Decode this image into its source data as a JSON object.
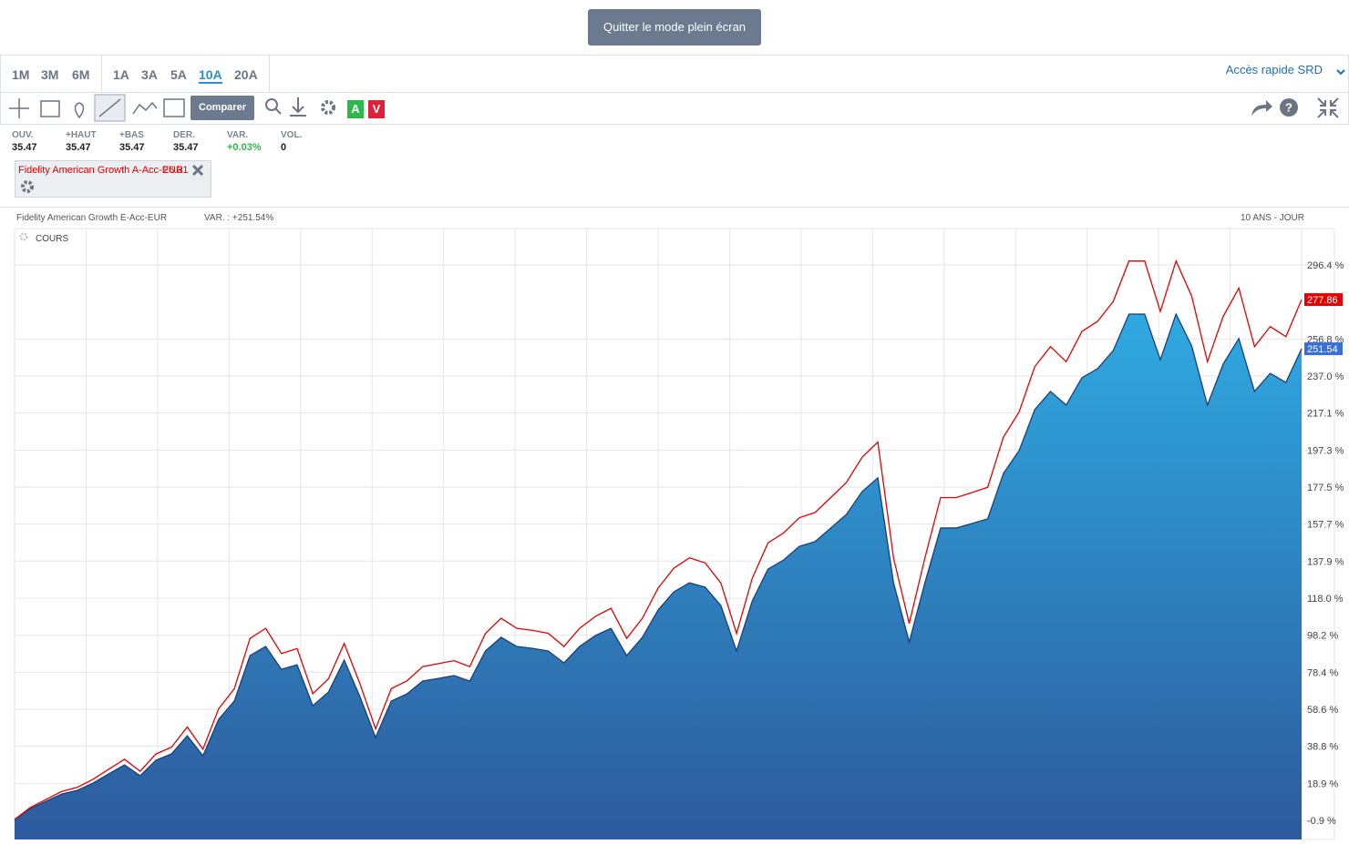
{
  "header": {
    "button": "Quitter le mode plein écran"
  },
  "periods": [
    "1M",
    "3M",
    "6M",
    "1A",
    "3A",
    "5A",
    "10A",
    "20A"
  ],
  "active_period": "10A",
  "quick_access": "Accès rapide SRD",
  "toolbar": {
    "compare": "Comparer",
    "buy": "A",
    "sell": "V"
  },
  "stats": [
    {
      "label": "OUV.",
      "value": "35.47"
    },
    {
      "label": "+HAUT",
      "value": "35.47"
    },
    {
      "label": "+BAS",
      "value": "35.47"
    },
    {
      "label": "DER.",
      "value": "35.47"
    },
    {
      "label": "VAR.",
      "value": "+0.03%"
    },
    {
      "label": "VOL.",
      "value": "0"
    }
  ],
  "compare_chip": {
    "name": "Fidelity American Growth A-Acc-EUR",
    "value": "26.31"
  },
  "chart_data": {
    "type": "area",
    "title": "Fidelity American Growth E-Acc-EUR",
    "subtitle": "VAR. : +251.54%",
    "period_label": "10 ANS - JOUR",
    "indicator": "COURS",
    "ylim": [
      -11.1,
      315.9
    ],
    "yticks": [
      {
        "value": -0.9,
        "label": "-0.9 %"
      },
      {
        "value": 18.9,
        "label": "18.9 %"
      },
      {
        "value": 38.8,
        "label": "38.8 %"
      },
      {
        "value": 58.6,
        "label": "58.6 %"
      },
      {
        "value": 78.4,
        "label": "78.4 %"
      },
      {
        "value": 98.2,
        "label": "98.2 %"
      },
      {
        "value": 118.0,
        "label": "118.0 %"
      },
      {
        "value": 137.9,
        "label": "137.9 %"
      },
      {
        "value": 157.7,
        "label": "157.7 %"
      },
      {
        "value": 177.5,
        "label": "177.5 %"
      },
      {
        "value": 197.3,
        "label": "197.3 %"
      },
      {
        "value": 217.1,
        "label": "217.1 %"
      },
      {
        "value": 237.0,
        "label": "237.0 %"
      },
      {
        "value": 256.8,
        "label": "256.8 %"
      },
      {
        "value": 296.4,
        "label": "296.4 %"
      }
    ],
    "grid": true,
    "series": [
      {
        "name": "Fidelity American Growth E-Acc-EUR",
        "color": "#1a3f7a",
        "fill_top": "#2fa9e1",
        "fill_bottom": "#2d5a9c",
        "values": [
          -0.4,
          5.4,
          9.3,
          13.2,
          15.2,
          19.1,
          24.0,
          28.8,
          23.0,
          31.3,
          34.7,
          44.4,
          33.7,
          53.2,
          63.0,
          87.3,
          92.2,
          80.0,
          82.4,
          60.5,
          67.8,
          84.9,
          65.4,
          43.5,
          63.0,
          66.8,
          73.7,
          75.1,
          76.6,
          73.7,
          89.8,
          97.1,
          92.2,
          91.2,
          89.8,
          83.4,
          92.2,
          98.0,
          101.9,
          87.3,
          97.1,
          111.7,
          121.4,
          126.3,
          123.9,
          114.1,
          89.8,
          116.5,
          133.6,
          138.5,
          145.8,
          148.3,
          155.6,
          162.9,
          175.1,
          182.4,
          126.3,
          94.6,
          126.3,
          155.6,
          155.6,
          158.0,
          160.5,
          184.8,
          197.0,
          219.0,
          228.7,
          221.4,
          236.0,
          240.9,
          250.6,
          270.1,
          270.1,
          245.7,
          270.1,
          253.0,
          221.4,
          243.3,
          257.0,
          228.7,
          238.4,
          233.5,
          251.54
        ]
      },
      {
        "name": "Fidelity American Growth A-Acc-EUR",
        "color": "#e60000",
        "values": [
          -0.4,
          6.0,
          10.3,
          14.6,
          16.8,
          21.1,
          26.5,
          31.8,
          25.4,
          34.6,
          38.3,
          49.1,
          37.2,
          58.8,
          69.6,
          96.5,
          101.9,
          88.4,
          91.1,
          66.9,
          74.9,
          93.8,
          72.3,
          48.1,
          69.6,
          73.8,
          81.4,
          83.0,
          84.6,
          81.4,
          99.2,
          107.3,
          101.9,
          100.8,
          99.2,
          92.2,
          101.9,
          108.3,
          112.6,
          96.5,
          107.3,
          123.4,
          134.1,
          139.6,
          136.9,
          126.1,
          99.2,
          128.7,
          147.6,
          153.0,
          161.1,
          163.9,
          171.9,
          180.0,
          193.5,
          201.6,
          139.6,
          104.5,
          139.6,
          171.9,
          171.9,
          174.6,
          177.4,
          204.2,
          217.7,
          242.0,
          252.7,
          244.6,
          260.8,
          266.2,
          276.9,
          298.5,
          298.5,
          271.5,
          298.5,
          279.6,
          244.6,
          268.8,
          284.0,
          252.7,
          263.4,
          258.0,
          277.86
        ]
      }
    ]
  }
}
